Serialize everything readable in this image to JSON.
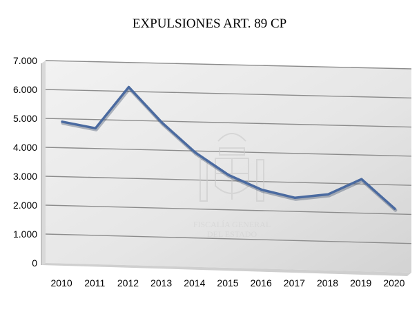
{
  "chart_data": {
    "type": "line",
    "title": "EXPULSIONES ART. 89 CP",
    "categories": [
      "2010",
      "2011",
      "2012",
      "2013",
      "2014",
      "2015",
      "2016",
      "2017",
      "2018",
      "2019",
      "2020"
    ],
    "series": [
      {
        "values": [
          4900,
          4700,
          6150,
          4950,
          3950,
          3200,
          2720,
          2470,
          2620,
          3170,
          2180
        ]
      }
    ],
    "ylim": [
      0,
      7000
    ],
    "yticks": [
      0,
      1000,
      2000,
      3000,
      4000,
      5000,
      6000,
      7000
    ],
    "ytick_labels": [
      "0",
      "1.000",
      "2.000",
      "3.000",
      "4.000",
      "5.000",
      "6.000",
      "7.000"
    ],
    "grid": true,
    "line_color": "#4a6aa0"
  },
  "watermark": {
    "line1": "FISCALÍA GENERAL",
    "line2": "DEL ESTADO"
  }
}
